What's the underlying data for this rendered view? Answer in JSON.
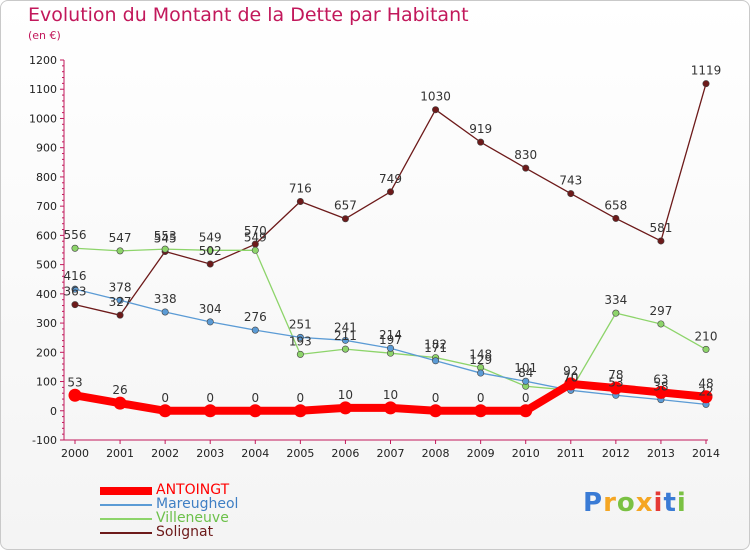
{
  "header": {
    "title": "Evolution du Montant de la Dette par Habitant",
    "subtitle": "(en €)"
  },
  "logo": {
    "text": "Proxiti",
    "colors": [
      "#3a7bd5",
      "#f5a623",
      "#7ac143",
      "#f5a623",
      "#e53935",
      "#3a7bd5",
      "#7ac143"
    ]
  },
  "chart_data": {
    "type": "line",
    "x": [
      "2000",
      "2001",
      "2002",
      "2003",
      "2004",
      "2005",
      "2006",
      "2007",
      "2008",
      "2009",
      "2010",
      "2011",
      "2012",
      "2013",
      "2014"
    ],
    "ylim": [
      -100,
      1200
    ],
    "yticks": [
      -100,
      0,
      100,
      200,
      300,
      400,
      500,
      600,
      700,
      800,
      900,
      1000,
      1100,
      1200
    ],
    "grid": false,
    "legend": "bottom-left",
    "xlabel": "",
    "ylabel": "",
    "series": [
      {
        "name": "Solignat",
        "color": "#6d1a1a",
        "values": [
          363,
          327,
          545,
          502,
          570,
          716,
          657,
          749,
          1030,
          919,
          830,
          743,
          658,
          581,
          1119
        ]
      },
      {
        "name": "Villeneuve",
        "color": "#8dd46a",
        "values": [
          556,
          547,
          553,
          549,
          549,
          193,
          211,
          197,
          182,
          148,
          84,
          70,
          334,
          297,
          210
        ]
      },
      {
        "name": "Mareugheol",
        "color": "#5b9bd5",
        "values": [
          416,
          378,
          338,
          304,
          276,
          251,
          241,
          214,
          171,
          129,
          101,
          70,
          53,
          38,
          22
        ]
      },
      {
        "name": "ANTOINGT",
        "color": "#ff0000",
        "values": [
          53,
          26,
          0,
          0,
          0,
          0,
          10,
          10,
          0,
          0,
          0,
          92,
          78,
          63,
          48
        ]
      }
    ]
  }
}
